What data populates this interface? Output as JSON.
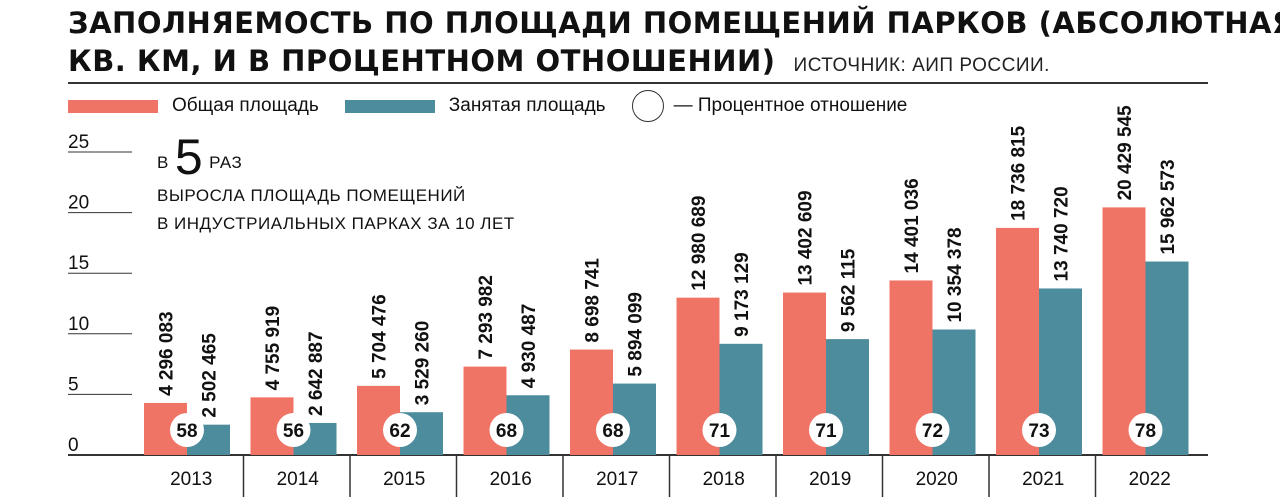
{
  "title": {
    "line1": "ЗАПОЛНЯЕМОСТЬ ПО ПЛОЩАДИ ПОМЕЩЕНИЙ ПАРКОВ (АБСОЛЮТНАЯ,",
    "line2": "КВ. КМ, И В ПРОЦЕНТНОМ ОТНОШЕНИИ)",
    "source": "ИСТОЧНИК: АИП РОССИИ."
  },
  "legend": {
    "total": "Общая площадь",
    "occupied": "Занятая площадь",
    "percent": "— Процентное отношение"
  },
  "callout": {
    "prefix": "В",
    "number": "5",
    "suffix": "РАЗ",
    "line2": "ВЫРОСЛА ПЛОЩАДЬ ПОМЕЩЕНИЙ",
    "line3": "В ИНДУСТРИАЛЬНЫХ ПАРКАХ ЗА 10 ЛЕТ"
  },
  "colors": {
    "total": "#f07466",
    "occupied": "#4d8c9c",
    "axis": "#333333",
    "text": "#111111"
  },
  "chart_data": {
    "type": "bar",
    "categories": [
      "2013",
      "2014",
      "2015",
      "2016",
      "2017",
      "2018",
      "2019",
      "2020",
      "2021",
      "2022"
    ],
    "series": [
      {
        "name": "Общая площадь",
        "values": [
          4.296083,
          4.755919,
          5.704476,
          7.293982,
          8.698741,
          12.980689,
          13.402609,
          14.401036,
          18.736815,
          20.429545
        ],
        "labels": [
          "4 296 083",
          "4 755 919",
          "5 704 476",
          "7 293 982",
          "8 698 741",
          "12 980 689",
          "13 402 609",
          "14 401 036",
          "18 736 815",
          "20 429 545"
        ]
      },
      {
        "name": "Занятая площадь",
        "values": [
          2.502465,
          2.642887,
          3.52926,
          4.930487,
          5.894099,
          9.173129,
          9.562115,
          10.354378,
          13.74072,
          15.962573
        ],
        "labels": [
          "2 502 465",
          "2 642 887",
          "3 529 260",
          "4 930 487",
          "5 894 099",
          "9 173 129",
          "9 562 115",
          "10 354 378",
          "13 740 720",
          "15 962 573"
        ]
      }
    ],
    "percent": [
      "58",
      "56",
      "62",
      "68",
      "68",
      "71",
      "71",
      "72",
      "73",
      "78"
    ],
    "yticks": [
      "0",
      "5",
      "10",
      "15",
      "20",
      "25"
    ],
    "ylim": [
      0,
      25
    ],
    "xlabel": "",
    "ylabel": "",
    "legend": "top-left",
    "grid": false
  }
}
